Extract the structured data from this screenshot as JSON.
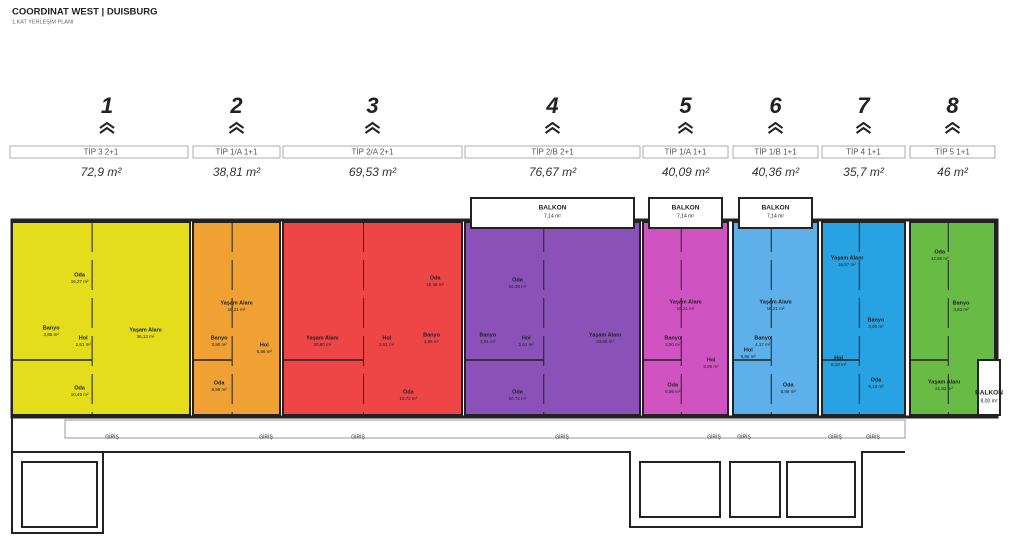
{
  "header": {
    "title": "COORDINAT WEST | DUISBURG",
    "subtitle": "1.KAT YERLEŞİM PLANI"
  },
  "units": [
    {
      "number": "1",
      "type": "TİP 3  2+1",
      "area": "72,9 m²",
      "color": "#e4dd1c",
      "rooms": [
        {
          "name": "Oda",
          "area": "16,27 m²"
        },
        {
          "name": "Banyo",
          "area": "3,85 m²"
        },
        {
          "name": "Hol",
          "area": "2,61 m²"
        },
        {
          "name": "Yaşam Alanı",
          "area": "36,13 m²"
        },
        {
          "name": "Oda",
          "area": "10,48 m²"
        }
      ]
    },
    {
      "number": "2",
      "type": "TİP 1/A  1+1",
      "area": "38,81 m²",
      "color": "#efa233",
      "rooms": [
        {
          "name": "Yaşam Alanı",
          "area": "16,21 m²"
        },
        {
          "name": "Banyo",
          "area": "3,90 m²"
        },
        {
          "name": "Hol",
          "area": "5,86 m²"
        },
        {
          "name": "Oda",
          "area": "8,98 m²"
        }
      ]
    },
    {
      "number": "3",
      "type": "TİP 2/A  2+1",
      "area": "69,53 m²",
      "color": "#ee4646",
      "rooms": [
        {
          "name": "Oda",
          "area": "16,46 m²"
        },
        {
          "name": "Yaşam Alanı",
          "area": "30,80 m²"
        },
        {
          "name": "Hol",
          "area": "2,61 m²"
        },
        {
          "name": "Banyo",
          "area": "3,95 m²"
        },
        {
          "name": "Oda",
          "area": "10,72 m²"
        }
      ]
    },
    {
      "number": "4",
      "type": "TİP 2/B  2+1",
      "area": "76,67 m²",
      "color": "#8a52b8",
      "balcony": {
        "name": "BALKON",
        "area": "7,14 m²"
      },
      "rooms": [
        {
          "name": "Oda",
          "area": "16,38 m²"
        },
        {
          "name": "Banyo",
          "area": "3,91 m²"
        },
        {
          "name": "Hol",
          "area": "2,61 m²"
        },
        {
          "name": "Yaşam Alanı",
          "area": "33,80 m²"
        },
        {
          "name": "Oda",
          "area": "10,72 m²"
        }
      ]
    },
    {
      "number": "5",
      "type": "TİP 1/A  1+1",
      "area": "40,09 m²",
      "color": "#d053c2",
      "balcony": {
        "name": "BALKON",
        "area": "7,14 m²"
      },
      "rooms": [
        {
          "name": "Yaşam Alanı",
          "area": "16,21 m²"
        },
        {
          "name": "Banyo",
          "area": "3,90 m²"
        },
        {
          "name": "Hol",
          "area": "5,86 m²"
        },
        {
          "name": "Oda",
          "area": "8,98 m²"
        }
      ]
    },
    {
      "number": "6",
      "type": "TİP 1/B  1+1",
      "area": "40,36 m²",
      "color": "#5db0ea",
      "balcony": {
        "name": "BALKON",
        "area": "7,14 m²"
      },
      "rooms": [
        {
          "name": "Yaşam Alanı",
          "area": "16,21 m²"
        },
        {
          "name": "Banyo",
          "area": "4,17 m²"
        },
        {
          "name": "Hol",
          "area": "5,86 m²"
        },
        {
          "name": "Oda",
          "area": "8,98 m²"
        }
      ]
    },
    {
      "number": "7",
      "type": "TİP 4  1+1",
      "area": "35,7 m²",
      "color": "#27a2e3",
      "rooms": [
        {
          "name": "Yaşam Alanı",
          "area": "16,57 m²"
        },
        {
          "name": "Banyo",
          "area": "3,90 m²"
        },
        {
          "name": "Hol",
          "area": "6,10 m²"
        },
        {
          "name": "Oda",
          "area": "9,13 m²"
        }
      ]
    },
    {
      "number": "8",
      "type": "TİP 5  1+1",
      "area": "46 m²",
      "color": "#68bc46",
      "balcony": {
        "name": "BALKON",
        "area": "8,00 m²"
      },
      "rooms": [
        {
          "name": "Oda",
          "area": "12,96 m²"
        },
        {
          "name": "Banyo",
          "area": "3,83 m²"
        },
        {
          "name": "Yaşam Alanı",
          "area": "21,83 m²"
        }
      ]
    }
  ],
  "entrances": [
    "GİRİŞ",
    "GİRİŞ",
    "GİRİŞ",
    "GİRİŞ",
    "GİRİŞ",
    "GİRİŞ",
    "GİRİŞ",
    "GİRİŞ"
  ]
}
